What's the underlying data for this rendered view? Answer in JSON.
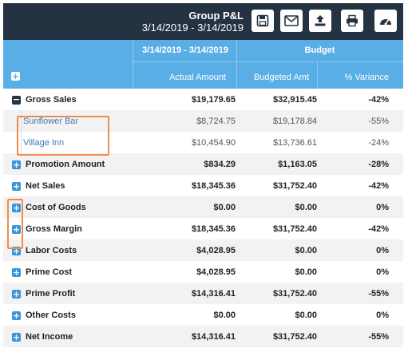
{
  "report": {
    "title": "Group P&L",
    "date_range": "3/14/2019 - 3/14/2019"
  },
  "toolbar": {
    "save": "save-icon",
    "email": "envelope-icon",
    "export": "upload-icon",
    "print": "printer-icon",
    "dashboard": "gauge-icon"
  },
  "header": {
    "period": "3/14/2019 - 3/14/2019",
    "budget": "Budget",
    "actual_amount": "Actual Amount",
    "budgeted_amt": "Budgeted Amt",
    "pct_variance": "% Variance"
  },
  "rows": [
    {
      "label": "Gross Sales",
      "actual": "$19,179.65",
      "budget": "$32,915.45",
      "variance": "-42%",
      "toggle": "minus"
    },
    {
      "label": "Sunflower Bar",
      "actual": "$8,724.75",
      "budget": "$19,178.84",
      "variance": "-55%",
      "toggle": "none"
    },
    {
      "label": "Village Inn",
      "actual": "$10,454.90",
      "budget": "$13,736.61",
      "variance": "-24%",
      "toggle": "none"
    },
    {
      "label": "Promotion Amount",
      "actual": "$834.29",
      "budget": "$1,163.05",
      "variance": "-28%",
      "toggle": "plus"
    },
    {
      "label": "Net Sales",
      "actual": "$18,345.36",
      "budget": "$31,752.40",
      "variance": "-42%",
      "toggle": "plus"
    },
    {
      "label": "Cost of Goods",
      "actual": "$0.00",
      "budget": "$0.00",
      "variance": "0%",
      "toggle": "plus"
    },
    {
      "label": "Gross Margin",
      "actual": "$18,345.36",
      "budget": "$31,752.40",
      "variance": "-42%",
      "toggle": "plus"
    },
    {
      "label": "Labor Costs",
      "actual": "$4,028.95",
      "budget": "$0.00",
      "variance": "0%",
      "toggle": "plus"
    },
    {
      "label": "Prime Cost",
      "actual": "$4,028.95",
      "budget": "$0.00",
      "variance": "0%",
      "toggle": "plus"
    },
    {
      "label": "Prime Profit",
      "actual": "$14,316.41",
      "budget": "$31,752.40",
      "variance": "-55%",
      "toggle": "plus"
    },
    {
      "label": "Other Costs",
      "actual": "$0.00",
      "budget": "$0.00",
      "variance": "0%",
      "toggle": "plus"
    },
    {
      "label": "Net Income",
      "actual": "$14,316.41",
      "budget": "$31,752.40",
      "variance": "-55%",
      "toggle": "plus"
    }
  ],
  "colors": {
    "topbar": "#243242",
    "header": "#5aaee6",
    "expand_button": "#3c95d6",
    "highlight": "#f08c4a"
  }
}
